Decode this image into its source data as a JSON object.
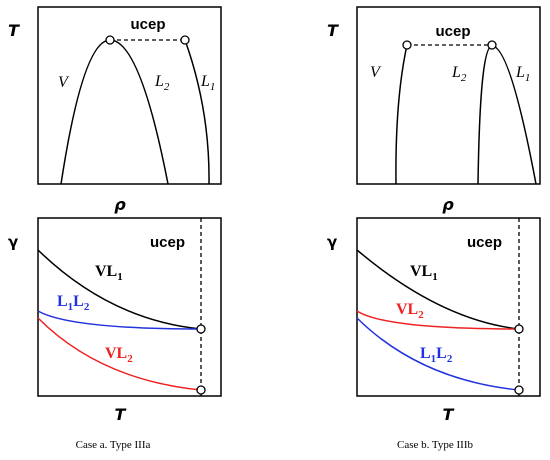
{
  "colors": {
    "black": "#000000",
    "blue": "#2233dd",
    "red": "#ee2222"
  },
  "panels": {
    "a_top": {
      "y_axis": "T",
      "x_axis": "ρ",
      "ucep": "ucep",
      "curves": [
        {
          "main": "V",
          "sub": ""
        },
        {
          "main": "L",
          "sub": "2"
        },
        {
          "main": "L",
          "sub": "1"
        }
      ]
    },
    "a_bottom": {
      "y_axis": "γ",
      "x_axis": "T",
      "ucep": "ucep",
      "curves": [
        {
          "main": "VL",
          "sub": "1",
          "color": "#000000"
        },
        {
          "main": "L",
          "sub": "1",
          "main2": "L",
          "sub2": "2",
          "color": "#2233dd"
        },
        {
          "main": "VL",
          "sub": "2",
          "color": "#ee2222"
        }
      ]
    },
    "b_top": {
      "y_axis": "T",
      "x_axis": "ρ",
      "ucep": "ucep",
      "curves": [
        {
          "main": "V",
          "sub": ""
        },
        {
          "main": "L",
          "sub": "2"
        },
        {
          "main": "L",
          "sub": "1"
        }
      ]
    },
    "b_bottom": {
      "y_axis": "γ",
      "x_axis": "T",
      "ucep": "ucep",
      "curves": [
        {
          "main": "VL",
          "sub": "1",
          "color": "#000000"
        },
        {
          "main": "VL",
          "sub": "2",
          "color": "#ee2222"
        },
        {
          "main": "L",
          "sub": "1",
          "main2": "L",
          "sub2": "2",
          "color": "#2233dd"
        }
      ]
    }
  },
  "captions": {
    "a": "Case a. Type IIIa",
    "b": "Case b. Type IIIb"
  }
}
